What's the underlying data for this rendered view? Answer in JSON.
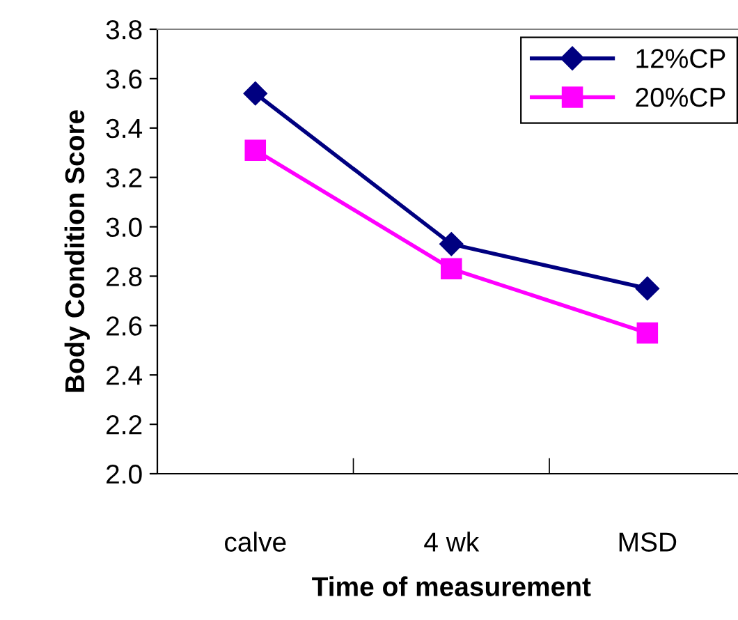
{
  "chart_data": {
    "type": "line",
    "xlabel": "Time of measurement",
    "ylabel": "Body Condition Score",
    "categories": [
      "calve",
      "4 wk",
      "MSD"
    ],
    "series": [
      {
        "name": "12%CP",
        "color": "#000080",
        "values": [
          3.54,
          2.93,
          2.75
        ],
        "marker": "diamond"
      },
      {
        "name": "20%CP",
        "color": "#ff00ff",
        "values": [
          3.31,
          2.83,
          2.57
        ],
        "marker": "square"
      }
    ],
    "ylim": [
      2.0,
      3.8
    ],
    "yticks": [
      {
        "value": 2.0,
        "label": "2.0"
      },
      {
        "value": 2.2,
        "label": "2.2"
      },
      {
        "value": 2.4,
        "label": "2.4"
      },
      {
        "value": 2.6,
        "label": "2.6"
      },
      {
        "value": 2.8,
        "label": "2.8"
      },
      {
        "value": 3.0,
        "label": "3.0"
      },
      {
        "value": 3.2,
        "label": "3.2"
      },
      {
        "value": 3.4,
        "label": "3.4"
      },
      {
        "value": 3.6,
        "label": "3.6"
      },
      {
        "value": 3.8,
        "label": "3.8"
      }
    ],
    "legend": "top right",
    "grid": false
  }
}
